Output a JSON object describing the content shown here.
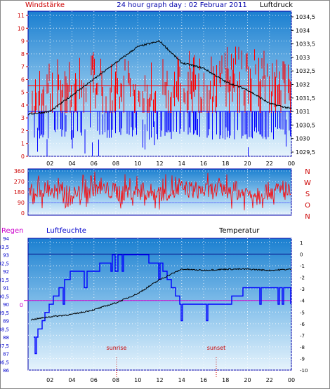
{
  "header": {
    "left_label": "Windstärke",
    "title": "24 hour graph day : 02 Februar 2011",
    "right_label": "Luftdruck"
  },
  "bottom_header": {
    "rain_label": "Regen",
    "humidity_label": "Luftfeuchte",
    "temperature_label": "Temperatur"
  },
  "compass": [
    "N",
    "W",
    "S",
    "O",
    "N"
  ],
  "x_ticks": [
    "02",
    "04",
    "06",
    "08",
    "10",
    "12",
    "14",
    "16",
    "18",
    "20",
    "22",
    "00"
  ],
  "bottom_x_ticks": [
    "02",
    "04",
    "06",
    "08",
    "10",
    "12",
    "14",
    "16",
    "18",
    "20",
    "22",
    "00"
  ],
  "sun_labels": {
    "sunrise": "sunrise",
    "sunset": "sunset"
  },
  "colors": {
    "frame": "#0000aa",
    "wind_speed": "#ff0000",
    "gust_blue": "#0000ff",
    "pressure": "#000000",
    "rain_line": "#cc00cc",
    "accent_red": "#cc0000"
  },
  "chart_data": [
    {
      "type": "line",
      "title": "24 hour graph day : 02 Februar 2011",
      "ylabel": "Windstärke",
      "y2label": "Luftdruck",
      "ylim": [
        0,
        11
      ],
      "y2lim": [
        1029.5,
        1034.5
      ],
      "y_ticks": [
        "0",
        "1",
        "2",
        "3",
        "4",
        "5",
        "6",
        "7",
        "8",
        "9",
        "10",
        "11"
      ],
      "y2_ticks": [
        "1029,5",
        "1030",
        "1030,5",
        "1031",
        "1031,5",
        "1032",
        "1032,5",
        "1033",
        "1033,5",
        "1034",
        "1034,5"
      ],
      "x": [
        "00",
        "02",
        "04",
        "06",
        "08",
        "10",
        "12",
        "14",
        "16",
        "18",
        "20",
        "22",
        "00"
      ],
      "series": [
        {
          "name": "Windstärke",
          "values": [
            4,
            5,
            5,
            6,
            5,
            5,
            5,
            6,
            5,
            6,
            6,
            6,
            5
          ]
        },
        {
          "name": "Luftdruck",
          "values": [
            1030.9,
            1031.0,
            1031.6,
            1032.2,
            1032.8,
            1033.4,
            1033.6,
            1032.8,
            1032.6,
            1032.1,
            1031.8,
            1031.3,
            1031.1
          ]
        }
      ]
    },
    {
      "type": "scatter",
      "ylim": [
        0,
        360
      ],
      "y_ticks": [
        "0",
        "90",
        "180",
        "270",
        "360"
      ],
      "series": [
        {
          "values": [
            180,
            200,
            150,
            220,
            180,
            190,
            170,
            210,
            190,
            200,
            170,
            190,
            180
          ]
        }
      ]
    },
    {
      "type": "line",
      "ylabel": "Luftfeuchte",
      "y2label": "Temperatur",
      "ylim": [
        86,
        94
      ],
      "y2lim": [
        -10,
        1
      ],
      "y_ticks": [
        "86",
        "86,5",
        "87",
        "87,5",
        "88",
        "88,5",
        "89",
        "89,5",
        "90",
        "90,5",
        "91",
        "91,5",
        "92",
        "92,5",
        "93",
        "93,5",
        "94"
      ],
      "y2_ticks": [
        "1",
        "0",
        "-1",
        "-2",
        "-3",
        "-4",
        "-5",
        "-6",
        "-7",
        "-8",
        "-9",
        "-10"
      ],
      "rain_axis_label": "0",
      "x": [
        "00",
        "02",
        "04",
        "06",
        "08",
        "10",
        "12",
        "14",
        "16",
        "18",
        "20",
        "22",
        "00"
      ],
      "series": [
        {
          "name": "Luftfeuchte",
          "values": [
            87,
            90,
            92,
            92,
            93,
            93,
            92.5,
            90,
            90,
            90,
            91,
            91,
            91
          ]
        },
        {
          "name": "Temperatur",
          "values": [
            -5.7,
            -5.4,
            -5.2,
            -4.8,
            -4.2,
            -3.4,
            -2.2,
            -1.3,
            -1.4,
            -1.3,
            -1.3,
            -1.4,
            -1.3
          ]
        },
        {
          "name": "Regen",
          "values": [
            0,
            0,
            0,
            0,
            0,
            0,
            0,
            0,
            0,
            0,
            0,
            0,
            0
          ]
        }
      ]
    }
  ]
}
